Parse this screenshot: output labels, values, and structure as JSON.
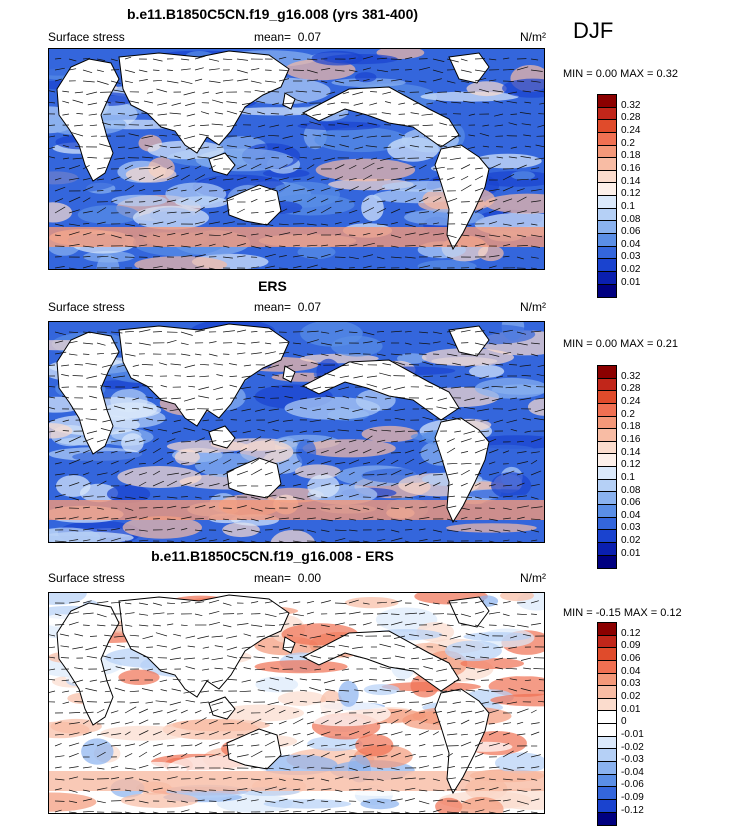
{
  "season": "DJF",
  "units": "N/m²",
  "panels": [
    {
      "title": "b.e11.B1850C5CN.f19_g16.008 (yrs 381-400)",
      "variable": "Surface stress",
      "mean_label": "mean=",
      "mean_value": "0.07",
      "minmax": "MIN =   0.00 MAX =   0.32",
      "colorbar_labels": [
        "0.32",
        "0.28",
        "0.24",
        "0.2",
        "0.18",
        "0.16",
        "0.14",
        "0.12",
        "0.1",
        "0.08",
        "0.06",
        "0.04",
        "0.03",
        "0.02",
        "0.01"
      ],
      "colorbar_colors": [
        "#8b0000",
        "#c1261a",
        "#e04b2b",
        "#f07052",
        "#f49879",
        "#f8bca4",
        "#fbdccd",
        "#fdf0ea",
        "#dbe9fb",
        "#b5d0f6",
        "#8ab2ef",
        "#5a8ee6",
        "#3466dc",
        "#1a43cf",
        "#0a1fb0",
        "#000080"
      ]
    },
    {
      "title": "ERS",
      "variable": "Surface stress",
      "mean_label": "mean=",
      "mean_value": "0.07",
      "minmax": "MIN =   0.00 MAX =   0.21",
      "colorbar_labels": [
        "0.32",
        "0.28",
        "0.24",
        "0.2",
        "0.18",
        "0.16",
        "0.14",
        "0.12",
        "0.1",
        "0.08",
        "0.06",
        "0.04",
        "0.03",
        "0.02",
        "0.01"
      ],
      "colorbar_colors": [
        "#8b0000",
        "#c1261a",
        "#e04b2b",
        "#f07052",
        "#f49879",
        "#f8bca4",
        "#fbdccd",
        "#fdf0ea",
        "#dbe9fb",
        "#b5d0f6",
        "#8ab2ef",
        "#5a8ee6",
        "#3466dc",
        "#1a43cf",
        "#0a1fb0",
        "#000080"
      ]
    },
    {
      "title": "b.e11.B1850C5CN.f19_g16.008 - ERS",
      "variable": "Surface stress",
      "mean_label": "mean=",
      "mean_value": "0.00",
      "minmax": "MIN = -0.15 MAX =   0.12",
      "colorbar_labels": [
        "0.12",
        "0.09",
        "0.06",
        "0.04",
        "0.03",
        "0.02",
        "0.01",
        "0",
        "-0.01",
        "-0.02",
        "-0.03",
        "-0.04",
        "-0.06",
        "-0.09",
        "-0.12"
      ],
      "colorbar_colors": [
        "#8b0000",
        "#c1261a",
        "#e04b2b",
        "#f07052",
        "#f49879",
        "#f8bca4",
        "#fbdccd",
        "#ffffff",
        "#ffffff",
        "#dbe9fb",
        "#b5d0f6",
        "#8ab2ef",
        "#5a8ee6",
        "#3466dc",
        "#1a43cf",
        "#000080"
      ]
    }
  ]
}
